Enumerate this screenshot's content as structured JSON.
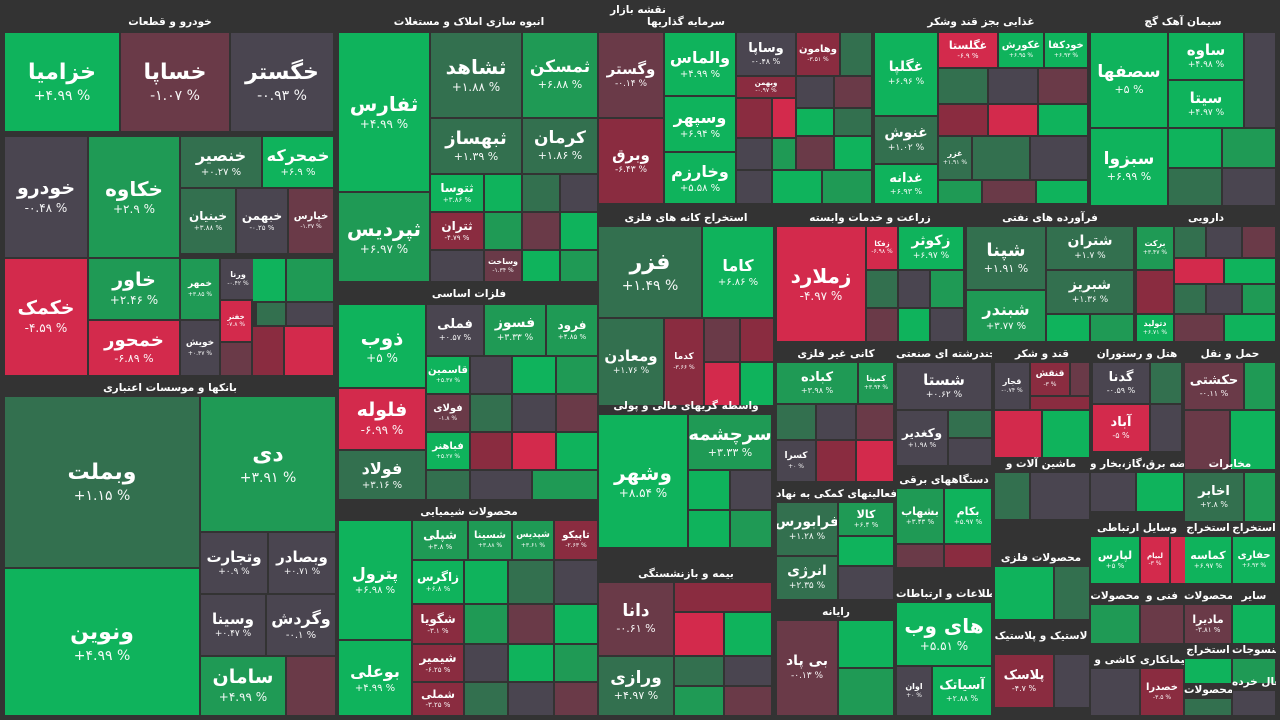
{
  "page_title": "نقشه بازار",
  "colors": {
    "bg": "#333333",
    "g3": "#0fb35c",
    "g2": "#1f9a55",
    "g1": "#33704f",
    "n": "#4a4550",
    "r1": "#6a3a48",
    "r2": "#8a2c40",
    "r3": "#d32a4c"
  },
  "sectors": [
    {
      "title": "خودرو و قطعات",
      "tiles": [
        {
          "sym": "خزامیا",
          "chg": "+۴.۹۹ %",
          "c": "g3"
        },
        {
          "sym": "خساپا",
          "chg": "-۱.۰۷ %",
          "c": "r1"
        },
        {
          "sym": "خگستر",
          "chg": "-۰.۹۳ %",
          "c": "n"
        },
        {
          "sym": "خودرو",
          "chg": "-۰.۴۸ %",
          "c": "n"
        },
        {
          "sym": "خکاوه",
          "chg": "+۲.۹ %",
          "c": "g2"
        },
        {
          "sym": "خنصیر",
          "chg": "+۰.۲۷ %",
          "c": "g1"
        },
        {
          "sym": "خمحرکه",
          "chg": "+۶.۹ %",
          "c": "g3"
        },
        {
          "sym": "خبنیان",
          "chg": "+۳.۸۸ %",
          "c": "g1"
        },
        {
          "sym": "خبهمن",
          "chg": "-۰.۲۵ %",
          "c": "n"
        },
        {
          "sym": "خپارس",
          "chg": "-۱.۳۷ %",
          "c": "r1"
        },
        {
          "sym": "خاور",
          "chg": "+۲.۴۶ %",
          "c": "g2"
        },
        {
          "sym": "خمهر",
          "chg": "+۳.۸۵ %",
          "c": "g2"
        },
        {
          "sym": "ورنا",
          "chg": "-۰.۴۲ %",
          "c": "n"
        },
        {
          "sym": "خکمک",
          "chg": "-۴.۵۹ %",
          "c": "r3"
        },
        {
          "sym": "خمحور",
          "chg": "-۶.۸۹ %",
          "c": "r3"
        },
        {
          "sym": "خویش",
          "chg": "+۰.۳۷ %",
          "c": "n"
        },
        {
          "sym": "خفنر",
          "chg": "-۷.۸ %",
          "c": "r3"
        }
      ]
    },
    {
      "title": "انبوه سازی املاک و مستغلات",
      "tiles": [
        {
          "sym": "ثفارس",
          "chg": "+۴.۹۹ %",
          "c": "g3"
        },
        {
          "sym": "ثشاهد",
          "chg": "+۱.۸۸ %",
          "c": "g1"
        },
        {
          "sym": "ثمسکن",
          "chg": "+۶.۸۸ %",
          "c": "g2"
        },
        {
          "sym": "ثبهساز",
          "chg": "+۱.۳۹ %",
          "c": "g1"
        },
        {
          "sym": "کرمان",
          "chg": "+۱.۸۶ %",
          "c": "g1"
        },
        {
          "sym": "ثپردیس",
          "chg": "+۶.۹۷ %",
          "c": "g2"
        },
        {
          "sym": "ثتوسا",
          "chg": "+۳.۸۶ %",
          "c": "g3"
        },
        {
          "sym": "ثتران",
          "chg": "-۴.۷۹ %",
          "c": "r2"
        },
        {
          "sym": "وساخت",
          "chg": "-۱.۳۴ %",
          "c": "r1"
        }
      ]
    },
    {
      "title": "نقشه بازار",
      "hidden": true,
      "tiles": []
    },
    {
      "title": "سرمایه گذاریها",
      "tiles": [
        {
          "sym": "وگستر",
          "chg": "-۰.۱۴ %",
          "c": "r1"
        },
        {
          "sym": "والماس",
          "chg": "+۴.۹۹ %",
          "c": "g3"
        },
        {
          "sym": "وساپا",
          "chg": "-۰.۴۸ %",
          "c": "n"
        },
        {
          "sym": "وهامون",
          "chg": "-۳.۵۱ %",
          "c": "r2"
        },
        {
          "sym": "وبهمن",
          "chg": "-۰.۹۷ %",
          "c": "r2"
        },
        {
          "sym": "وسپهر",
          "chg": "+۶.۹۴ %",
          "c": "g3"
        },
        {
          "sym": "وبرق",
          "chg": "-۶.۴۳ %",
          "c": "r2"
        },
        {
          "sym": "وخارزم",
          "chg": "+۵.۵۸ %",
          "c": "g3"
        }
      ]
    },
    {
      "title": "غذایی بجز قند وشکر",
      "tiles": [
        {
          "sym": "غگلپا",
          "chg": "+۶.۹۶ %",
          "c": "g3"
        },
        {
          "sym": "غگلستا",
          "chg": "-۶.۹ %",
          "c": "r3"
        },
        {
          "sym": "غکورش",
          "chg": "+۶.۹۵ %",
          "c": "g3"
        },
        {
          "sym": "خودکفا",
          "chg": "+۶.۹۳ %",
          "c": "g3"
        },
        {
          "sym": "غنوش",
          "chg": "+۱.۰۲ %",
          "c": "g1"
        },
        {
          "sym": "غزر",
          "chg": "+۱.۹۱ %",
          "c": "g1"
        },
        {
          "sym": "غدانه",
          "chg": "+۶.۹۳ %",
          "c": "g3"
        }
      ]
    },
    {
      "title": "سیمان آهک گچ",
      "tiles": [
        {
          "sym": "سصفها",
          "chg": "+۵ %",
          "c": "g3"
        },
        {
          "sym": "ساوه",
          "chg": "+۴.۹۸ %",
          "c": "g3"
        },
        {
          "sym": "سیتا",
          "chg": "+۴.۹۷ %",
          "c": "g3"
        },
        {
          "sym": "سبزوا",
          "chg": "+۶.۹۹ %",
          "c": "g3"
        }
      ]
    },
    {
      "title": "استخراج کانه های فلزی",
      "tiles": [
        {
          "sym": "فزر",
          "chg": "+۱.۴۹ %",
          "c": "g1"
        },
        {
          "sym": "کاما",
          "chg": "+۶.۸۶ %",
          "c": "g3"
        },
        {
          "sym": "ومعادن",
          "chg": "+۱.۷۶ %",
          "c": "g1"
        },
        {
          "sym": "کدما",
          "chg": "-۳.۶۶ %",
          "c": "r2"
        }
      ]
    },
    {
      "title": "زراعت و خدمات وابسته",
      "tiles": [
        {
          "sym": "زملارد",
          "chg": "-۴.۹۷ %",
          "c": "r3"
        },
        {
          "sym": "زفکا",
          "chg": "-۶.۹۸ %",
          "c": "r3"
        },
        {
          "sym": "زکوثر",
          "chg": "+۶.۹۷ %",
          "c": "g3"
        }
      ]
    },
    {
      "title": "فرآورده های نفتی",
      "tiles": [
        {
          "sym": "شپنا",
          "chg": "+۱.۹۱ %",
          "c": "g1"
        },
        {
          "sym": "شتران",
          "chg": "+۱.۷ %",
          "c": "g1"
        },
        {
          "sym": "شبریز",
          "chg": "+۱.۳۶ %",
          "c": "g1"
        },
        {
          "sym": "شبندر",
          "chg": "+۳.۷۷ %",
          "c": "g2"
        }
      ]
    },
    {
      "title": "دارویی",
      "tiles": [
        {
          "sym": "برکت",
          "chg": "+۳.۴۷ %",
          "c": "g2"
        },
        {
          "sym": "دتولید",
          "chg": "+۶.۷۱ %",
          "c": "g3"
        }
      ]
    },
    {
      "title": "فلزات اساسی",
      "tiles": [
        {
          "sym": "ذوب",
          "chg": "+۵ %",
          "c": "g3"
        },
        {
          "sym": "فملی",
          "chg": "+۰.۵۷ %",
          "c": "n"
        },
        {
          "sym": "فسوز",
          "chg": "+۳.۳۳ %",
          "c": "g2"
        },
        {
          "sym": "فرود",
          "chg": "+۴.۸۵ %",
          "c": "g2"
        },
        {
          "sym": "قاسمین",
          "chg": "+۵.۳۷ %",
          "c": "g3"
        },
        {
          "sym": "فلوله",
          "chg": "-۶.۹۹ %",
          "c": "r3"
        },
        {
          "sym": "فولای",
          "chg": "-۱.۸ %",
          "c": "r1"
        },
        {
          "sym": "فباهنر",
          "chg": "+۵.۲۷ %",
          "c": "g3"
        },
        {
          "sym": "فولاد",
          "chg": "+۳.۱۶ %",
          "c": "g1"
        }
      ]
    },
    {
      "title": "بانکها و موسسات اعتباری",
      "tiles": [
        {
          "sym": "وبملت",
          "chg": "+۱.۱۵ %",
          "c": "g1"
        },
        {
          "sym": "دی",
          "chg": "+۳.۹۱ %",
          "c": "g2"
        },
        {
          "sym": "وتجارت",
          "chg": "+۰.۹ %",
          "c": "n"
        },
        {
          "sym": "وبصادر",
          "chg": "+۰.۷۱ %",
          "c": "n"
        },
        {
          "sym": "ونوین",
          "chg": "+۴.۹۹ %",
          "c": "g3"
        },
        {
          "sym": "وسینا",
          "chg": "+۰.۴۷ %",
          "c": "n"
        },
        {
          "sym": "وگردش",
          "chg": "-۰.۱ %",
          "c": "n"
        },
        {
          "sym": "سامان",
          "chg": "+۴.۹۹ %",
          "c": "g2"
        }
      ]
    },
    {
      "title": "واسطه گریهای مالی و پولی",
      "tiles": [
        {
          "sym": "وشهر",
          "chg": "+۸.۵۴ %",
          "c": "g3"
        },
        {
          "sym": "سرچشمه",
          "chg": "+۳.۳۳ %",
          "c": "g2"
        }
      ]
    },
    {
      "title": "کانی غیر فلزی",
      "tiles": [
        {
          "sym": "کباده",
          "chg": "+۳.۹۸ %",
          "c": "g2"
        },
        {
          "sym": "کمینا",
          "chg": "+۳.۹۴ %",
          "c": "g2"
        },
        {
          "sym": "کسرا",
          "chg": "+۰ %",
          "c": "n"
        }
      ]
    },
    {
      "title": "محصولات شیمیایی",
      "tiles": [
        {
          "sym": "شپلی",
          "chg": "+۳.۸ %",
          "c": "g2"
        },
        {
          "sym": "شسینا",
          "chg": "+۳.۸۸ %",
          "c": "g2"
        },
        {
          "sym": "شپدیس",
          "chg": "+۳.۶۱ %",
          "c": "g2"
        },
        {
          "sym": "تاپیکو",
          "chg": "-۲.۶۳ %",
          "c": "r2"
        },
        {
          "sym": "پترول",
          "chg": "+۶.۹۸ %",
          "c": "g3"
        },
        {
          "sym": "زاگرس",
          "chg": "+۶.۸ %",
          "c": "g3"
        },
        {
          "sym": "شگویا",
          "chg": "-۳.۱ %",
          "c": "r2"
        },
        {
          "sym": "شیمیر",
          "chg": "-۶.۲۵ %",
          "c": "r2"
        },
        {
          "sym": "بوعلی",
          "chg": "+۴.۹۹ %",
          "c": "g3"
        },
        {
          "sym": "شملی",
          "chg": "-۳.۲۵ %",
          "c": "r2"
        }
      ]
    },
    {
      "title": "بیمه و بازنشستگی",
      "tiles": [
        {
          "sym": "دانا",
          "chg": "-۰.۶۱ %",
          "c": "r1"
        },
        {
          "sym": "ورازی",
          "chg": "+۴.۹۷ %",
          "c": "g1"
        }
      ]
    },
    {
      "title": "فعالیتهای کمکی به نهاد",
      "tiles": [
        {
          "sym": "فرابورس",
          "chg": "+۱.۲۸ %",
          "c": "g1"
        },
        {
          "sym": "کالا",
          "chg": "+۶.۴ %",
          "c": "g2"
        },
        {
          "sym": "انرژی",
          "chg": "+۲.۳۵ %",
          "c": "g1"
        }
      ]
    },
    {
      "title": "رایانه",
      "tiles": [
        {
          "sym": "بی پاد",
          "chg": "-۰.۱۳ %",
          "c": "r1"
        }
      ]
    },
    {
      "title": "چندرشته ای صنعتی",
      "tiles": [
        {
          "sym": "شستا",
          "chg": "+۰.۶۲ %",
          "c": "n"
        },
        {
          "sym": "وکغدیر",
          "chg": "+۱.۹۸ %",
          "c": "n"
        }
      ]
    },
    {
      "title": "قند و شکر",
      "tiles": [
        {
          "sym": "قجار",
          "chg": "-۰.۷۴ %",
          "c": "n"
        },
        {
          "sym": "قنقش",
          "chg": "-۳ %",
          "c": "r2"
        }
      ]
    },
    {
      "title": "هتل و رستوران",
      "tiles": [
        {
          "sym": "گدنا",
          "chg": "-۰.۵۹ %",
          "c": "n"
        },
        {
          "sym": "آباد",
          "chg": "-۵ %",
          "c": "r3"
        }
      ]
    },
    {
      "title": "حمل و نقل",
      "tiles": [
        {
          "sym": "حکشتی",
          "chg": "-۰.۱۱ %",
          "c": "r1"
        }
      ]
    },
    {
      "title": "عرضه برق،گاز،بخار و",
      "tiles": []
    },
    {
      "title": "مخابرات",
      "tiles": [
        {
          "sym": "اخابر",
          "chg": "+۲.۸ %",
          "c": "g1"
        }
      ]
    },
    {
      "title": "ماشین آلات و",
      "tiles": []
    },
    {
      "title": "دستگاههای برقی",
      "tiles": [
        {
          "sym": "بشهاب",
          "chg": "+۳.۴۳ %",
          "c": "g2"
        },
        {
          "sym": "بکام",
          "chg": "+۵.۹۷ %",
          "c": "g3"
        }
      ]
    },
    {
      "title": "وسایل ارتباطی",
      "tiles": [
        {
          "sym": "لپارس",
          "chg": "+۵ %",
          "c": "g3"
        },
        {
          "sym": "لبیام",
          "chg": "-۳ %",
          "c": "r3"
        }
      ]
    },
    {
      "title": "استخراج",
      "tiles": [
        {
          "sym": "کماسه",
          "chg": "+۶.۹۷ %",
          "c": "g3"
        }
      ]
    },
    {
      "title": "استخراج",
      "id": "extract2",
      "tiles": [
        {
          "sym": "حفاری",
          "chg": "+۶.۹۳ %",
          "c": "g3"
        }
      ]
    },
    {
      "title": "محصولات فلزی",
      "tiles": []
    },
    {
      "title": "اطلاعات و ارتباطات",
      "tiles": [
        {
          "sym": "های وب",
          "chg": "+۵.۵۱ %",
          "c": "g3"
        },
        {
          "sym": "اوان",
          "chg": "+۰ %",
          "c": "n"
        },
        {
          "sym": "آسیاتک",
          "chg": "+۲.۸۸ %",
          "c": "g3"
        }
      ]
    },
    {
      "title": "لاستیک و پلاستیک",
      "tiles": [
        {
          "sym": "پلاسک",
          "chg": "-۴.۷ %",
          "c": "r2"
        }
      ]
    },
    {
      "title": "محصولات",
      "tiles": []
    },
    {
      "title": "فنی و",
      "tiles": []
    },
    {
      "title": "محصولات",
      "id": "mahsoolat2",
      "tiles": [
        {
          "sym": "مادیرا",
          "chg": "-۳.۸۱ %",
          "c": "r1"
        }
      ]
    },
    {
      "title": "سایر",
      "tiles": []
    },
    {
      "title": "کاشی و",
      "tiles": []
    },
    {
      "title": "پیمانکاری",
      "tiles": [
        {
          "sym": "خصدرا",
          "chg": "-۳.۵ %",
          "c": "r2"
        }
      ]
    },
    {
      "title": "استخراج",
      "id": "extract3",
      "tiles": []
    },
    {
      "title": "منسوجات",
      "tiles": []
    },
    {
      "title": "محصولات",
      "id": "mahsoolat3",
      "tiles": []
    },
    {
      "title": "فعال خرده",
      "tiles": []
    }
  ]
}
